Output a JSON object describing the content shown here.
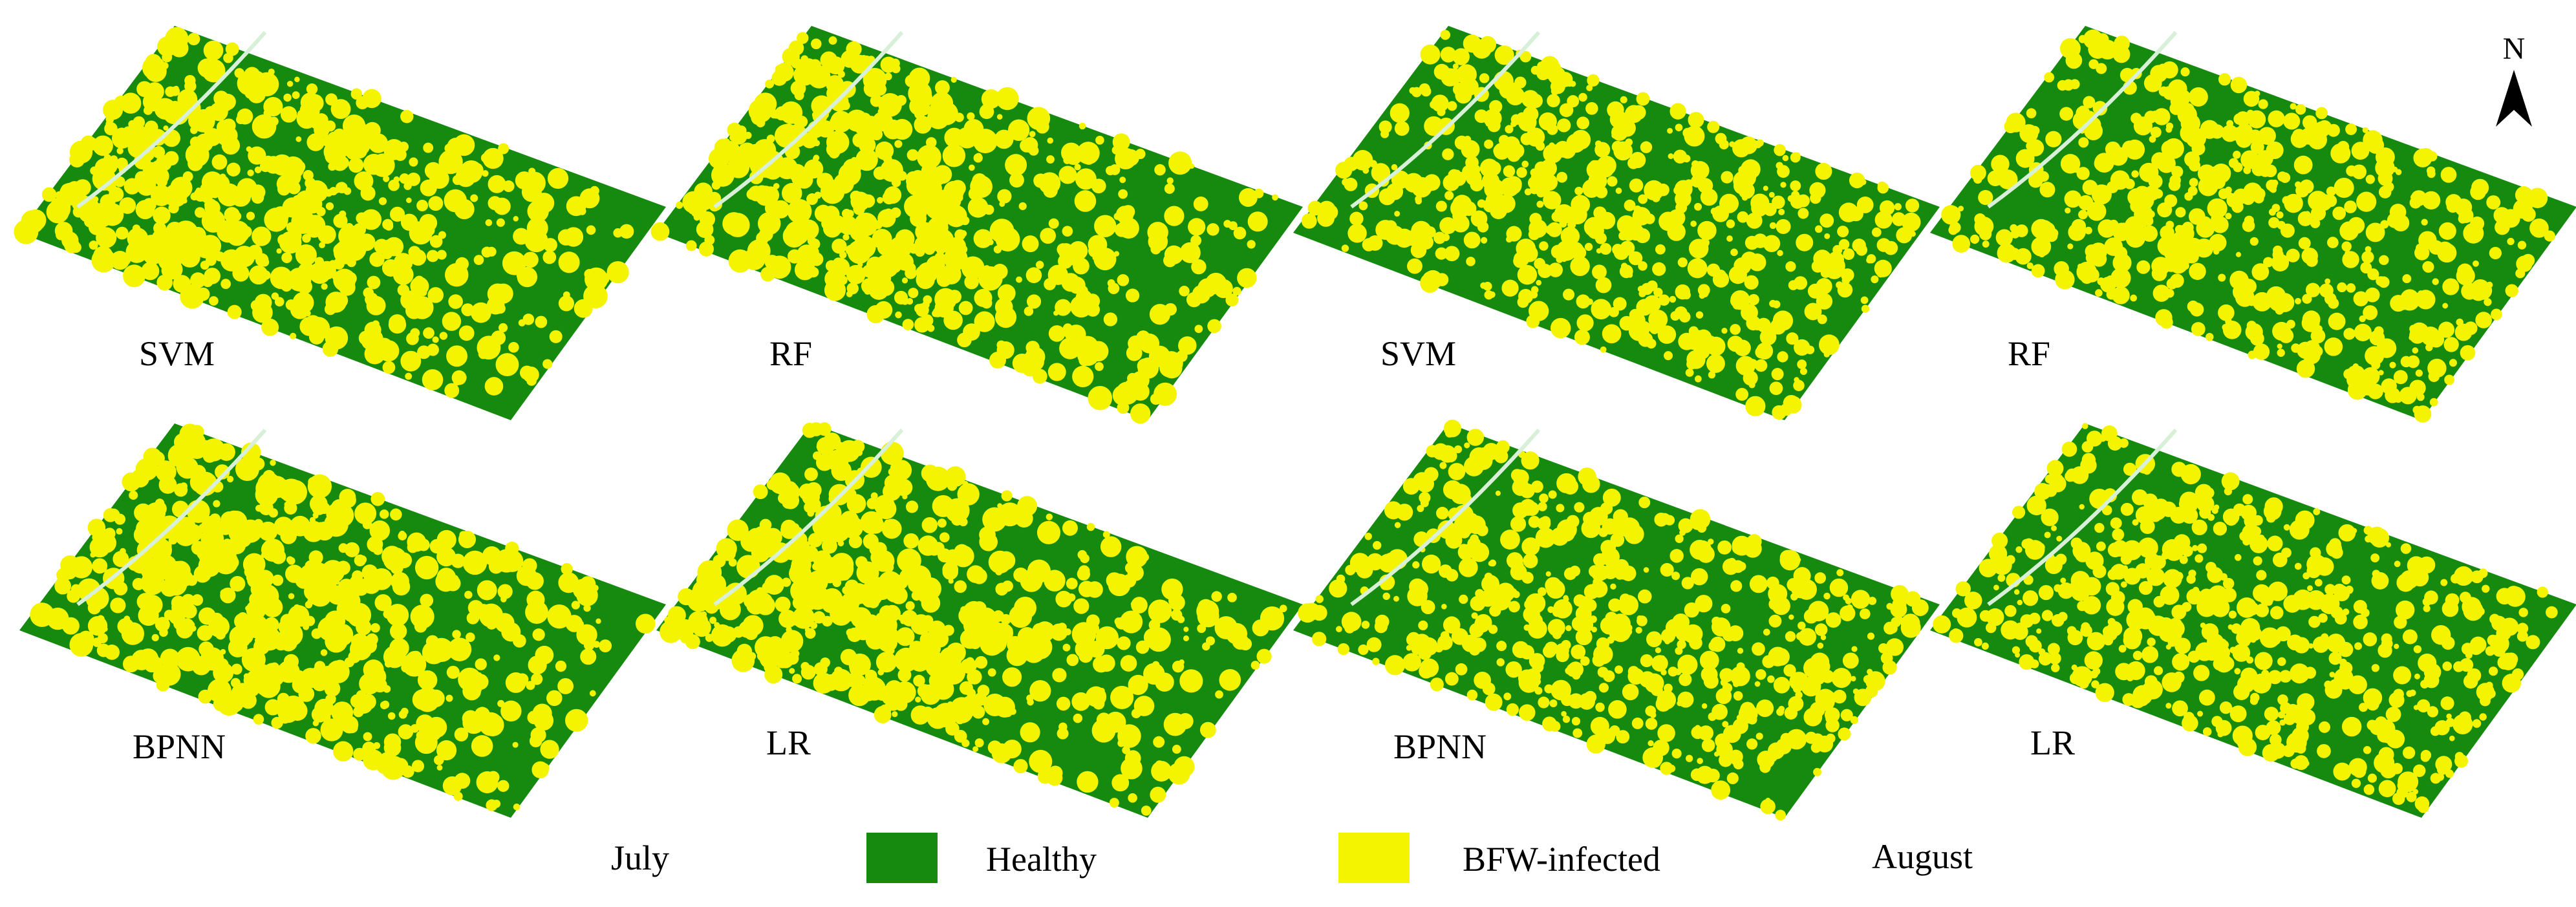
{
  "figure": {
    "periods": {
      "first": "July",
      "second": "August"
    },
    "north_label": "N",
    "legend": {
      "healthy_label": "Healthy",
      "infected_label": "BFW-infected",
      "healthy_color": "#168a0f",
      "infected_color": "#f4f400"
    },
    "panels": [
      {
        "period": "July",
        "model": "SVM"
      },
      {
        "period": "July",
        "model": "RF"
      },
      {
        "period": "August",
        "model": "SVM"
      },
      {
        "period": "August",
        "model": "RF"
      },
      {
        "period": "July",
        "model": "BPNN"
      },
      {
        "period": "July",
        "model": "LR"
      },
      {
        "period": "August",
        "model": "BPNN"
      },
      {
        "period": "August",
        "model": "LR"
      }
    ]
  }
}
